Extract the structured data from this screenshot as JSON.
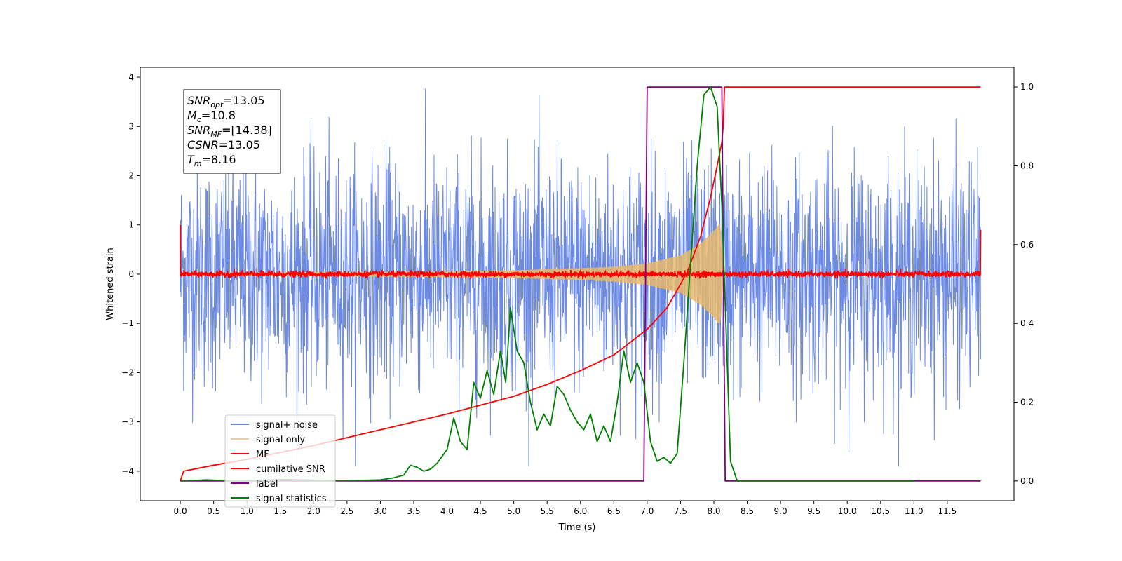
{
  "chart_data": {
    "type": "line",
    "title": "",
    "xlabel": "Time (s)",
    "ylabel": "Whitened strain",
    "y2label": "",
    "xlim": [
      -0.6,
      12.5
    ],
    "ylim": [
      -4.6,
      4.2
    ],
    "y2lim": [
      -0.05,
      1.05
    ],
    "x_ticks": [
      0.0,
      0.5,
      1.0,
      1.5,
      2.0,
      2.5,
      3.0,
      3.5,
      4.0,
      4.5,
      5.0,
      5.5,
      6.0,
      6.5,
      7.0,
      7.5,
      8.0,
      8.5,
      9.0,
      9.5,
      10.0,
      10.5,
      11.0,
      11.5
    ],
    "x_tick_labels": [
      "0.0",
      "0.5",
      "1.0",
      "1.5",
      "2.0",
      "2.5",
      "3.0",
      "3.5",
      "4.0",
      "4.5",
      "5.0",
      "5.5",
      "6.0",
      "6.5",
      "7.0",
      "7.5",
      "8.0",
      "8.5",
      "9.0",
      "9.5",
      "10.0",
      "10.5",
      "11.0",
      "11.5"
    ],
    "y_ticks": [
      -4,
      -3,
      -2,
      -1,
      0,
      1,
      2,
      3,
      4
    ],
    "y_tick_labels": [
      "−4",
      "−3",
      "−2",
      "−1",
      "0",
      "1",
      "2",
      "3",
      "4"
    ],
    "y2_ticks": [
      0.0,
      0.2,
      0.4,
      0.6,
      0.8,
      1.0
    ],
    "y2_tick_labels": [
      "0.0",
      "0.2",
      "0.4",
      "0.6",
      "0.8",
      "1.0"
    ],
    "grid": false,
    "legend_position": "lower-left",
    "x_range": [
      0,
      12
    ],
    "series": [
      {
        "name": "signal+ noise",
        "color": "#6c8ae4",
        "axis": "left",
        "kind": "noise",
        "amplitude": 1.15,
        "range": [
          -3.9,
          3.9
        ]
      },
      {
        "name": "signal only",
        "color": "#e8b86b",
        "axis": "left",
        "kind": "chirp_envelope",
        "envelope_x": [
          0,
          2,
          4,
          5,
          6,
          6.5,
          7,
          7.5,
          7.8,
          8.0,
          8.1,
          8.15
        ],
        "envelope_y": [
          0.03,
          0.04,
          0.06,
          0.08,
          0.12,
          0.15,
          0.22,
          0.38,
          0.62,
          0.88,
          1.05,
          0.0
        ]
      },
      {
        "name": "MF",
        "color": "#ff0000",
        "axis": "left",
        "kind": "noise",
        "amplitude": 0.03,
        "range": [
          -0.12,
          0.22
        ],
        "spike_start": 1.0,
        "spike_end": 0.9
      },
      {
        "name": "cumilative SNR",
        "color": "#ff0000",
        "axis": "right",
        "x": [
          0.0,
          0.05,
          0.5,
          1,
          2,
          3,
          4,
          5,
          5.5,
          6,
          6.5,
          7,
          7.3,
          7.6,
          7.8,
          7.95,
          8.05,
          8.12,
          8.14,
          8.16,
          12.0
        ],
        "y": [
          0.0,
          0.025,
          0.04,
          0.055,
          0.09,
          0.13,
          0.17,
          0.215,
          0.245,
          0.28,
          0.32,
          0.385,
          0.44,
          0.53,
          0.62,
          0.72,
          0.8,
          0.86,
          0.9,
          1.0,
          1.0
        ]
      },
      {
        "name": "label",
        "color": "#800080",
        "axis": "right",
        "x": [
          0.0,
          6.95,
          7.0,
          8.12,
          8.17,
          12.0
        ],
        "y": [
          0.0,
          0.0,
          1.0,
          1.0,
          0.0,
          0.0
        ]
      },
      {
        "name": "signal statistics",
        "color": "#008000",
        "axis": "right",
        "x": [
          0.0,
          0.4,
          0.8,
          1.2,
          1.6,
          2.0,
          2.4,
          2.8,
          3.0,
          3.2,
          3.35,
          3.45,
          3.55,
          3.65,
          3.75,
          3.85,
          4.0,
          4.1,
          4.2,
          4.3,
          4.4,
          4.5,
          4.6,
          4.7,
          4.8,
          4.88,
          4.95,
          5.05,
          5.15,
          5.25,
          5.35,
          5.45,
          5.55,
          5.65,
          5.75,
          5.85,
          5.95,
          6.05,
          6.15,
          6.25,
          6.35,
          6.45,
          6.55,
          6.65,
          6.75,
          6.85,
          6.95,
          7.05,
          7.15,
          7.25,
          7.35,
          7.45,
          7.55,
          7.65,
          7.75,
          7.85,
          7.95,
          8.05,
          8.12,
          8.18,
          8.25,
          8.35,
          11.0
        ],
        "y": [
          0.0,
          0.003,
          0.0,
          0.002,
          0.004,
          0.002,
          0.001,
          0.002,
          0.003,
          0.008,
          0.015,
          0.04,
          0.035,
          0.025,
          0.03,
          0.045,
          0.08,
          0.16,
          0.1,
          0.08,
          0.25,
          0.21,
          0.28,
          0.22,
          0.33,
          0.25,
          0.44,
          0.33,
          0.3,
          0.2,
          0.13,
          0.17,
          0.14,
          0.24,
          0.22,
          0.18,
          0.15,
          0.13,
          0.17,
          0.1,
          0.14,
          0.1,
          0.2,
          0.33,
          0.25,
          0.3,
          0.25,
          0.1,
          0.05,
          0.06,
          0.045,
          0.07,
          0.3,
          0.55,
          0.8,
          0.98,
          1.0,
          0.95,
          0.7,
          0.4,
          0.05,
          0.0,
          0.0
        ]
      }
    ],
    "annotation_lines": [
      {
        "name": "SNR",
        "sub": "opt",
        "value": "=13.05"
      },
      {
        "name": "M",
        "sub": "c",
        "value": "=10.8"
      },
      {
        "name": "SNR",
        "sub": "MF",
        "value": "=[14.38]"
      },
      {
        "name": "CSNR",
        "sub": "",
        "value": "=13.05"
      },
      {
        "name": "T",
        "sub": "m",
        "value": "=8.16"
      }
    ]
  }
}
